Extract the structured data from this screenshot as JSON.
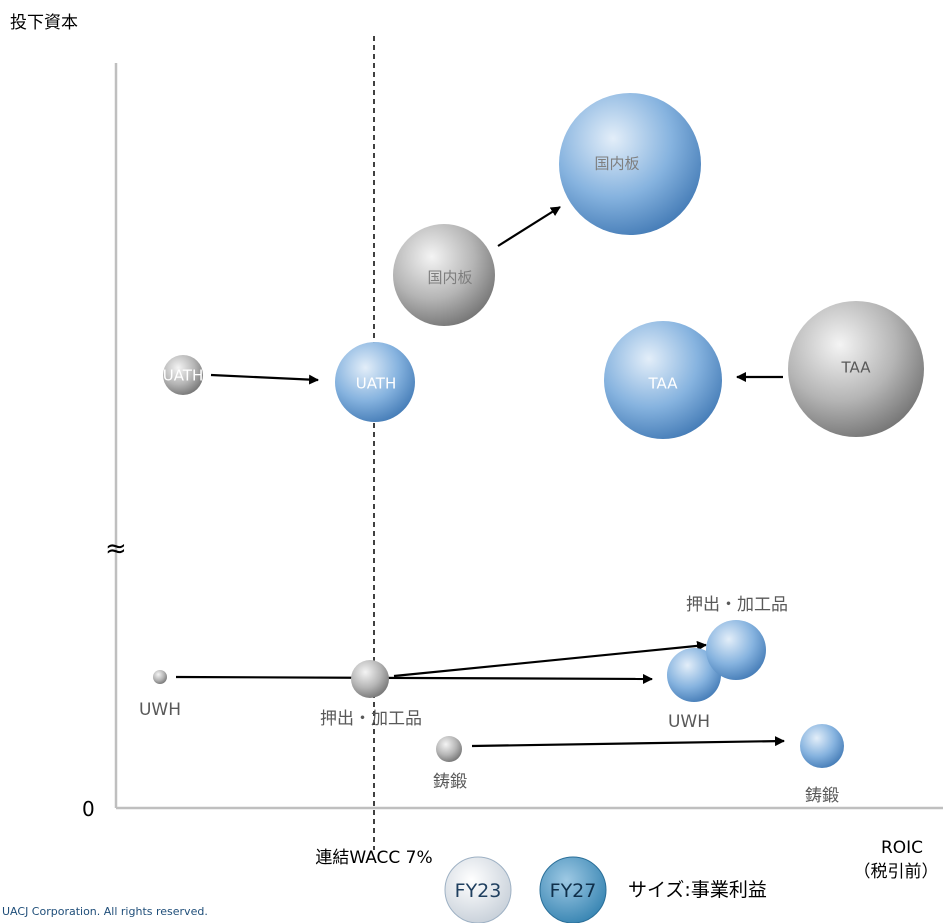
{
  "chart_data": {
    "type": "scatter",
    "subtype": "bubble",
    "ylabel": "投下資本",
    "xlabel_line1": "ROIC",
    "xlabel_line2": "（税引前）",
    "y_origin_label": "0",
    "y_axis_break": "≈",
    "reference_line": {
      "label": "連結WACC 7%",
      "style": "dashed"
    },
    "size_legend": {
      "caption": "サイズ:事業利益",
      "items": [
        "FY23",
        "FY27"
      ]
    },
    "series": [
      {
        "name": "FY23",
        "color": "#9a9a9a",
        "points": [
          {
            "label": "国内板",
            "x": 5.2,
            "y": 6.6,
            "size": 0.7
          },
          {
            "label": "UATH",
            "x": 1.5,
            "y": 5.4,
            "size": 0.3
          },
          {
            "label": "TAA",
            "x": 17.0,
            "y": 5.4,
            "size": 1.0
          },
          {
            "label": "UWH",
            "x": 0.8,
            "y": 1.3,
            "size": 0.1
          },
          {
            "label": "押出・加工品",
            "x": 5.7,
            "y": 1.3,
            "size": 0.25
          },
          {
            "label": "鋳鍛",
            "x": 7.0,
            "y": 0.6,
            "size": 0.18
          }
        ]
      },
      {
        "name": "FY27",
        "color": "#5b9bd5",
        "points": [
          {
            "label": "国内板",
            "x": 11.0,
            "y": 8.3,
            "size": 0.95
          },
          {
            "label": "UATH",
            "x": 5.4,
            "y": 5.4,
            "size": 0.5
          },
          {
            "label": "TAA",
            "x": 11.9,
            "y": 5.4,
            "size": 0.85
          },
          {
            "label": "UWH",
            "x": 12.1,
            "y": 1.3,
            "size": 0.4
          },
          {
            "label": "押出・加工品",
            "x": 13.0,
            "y": 1.5,
            "size": 0.43
          },
          {
            "label": "鋳鍛",
            "x": 15.5,
            "y": 0.6,
            "size": 0.3
          }
        ]
      }
    ]
  },
  "footer": {
    "copyright": "UACJ Corporation. All rights reserved."
  }
}
